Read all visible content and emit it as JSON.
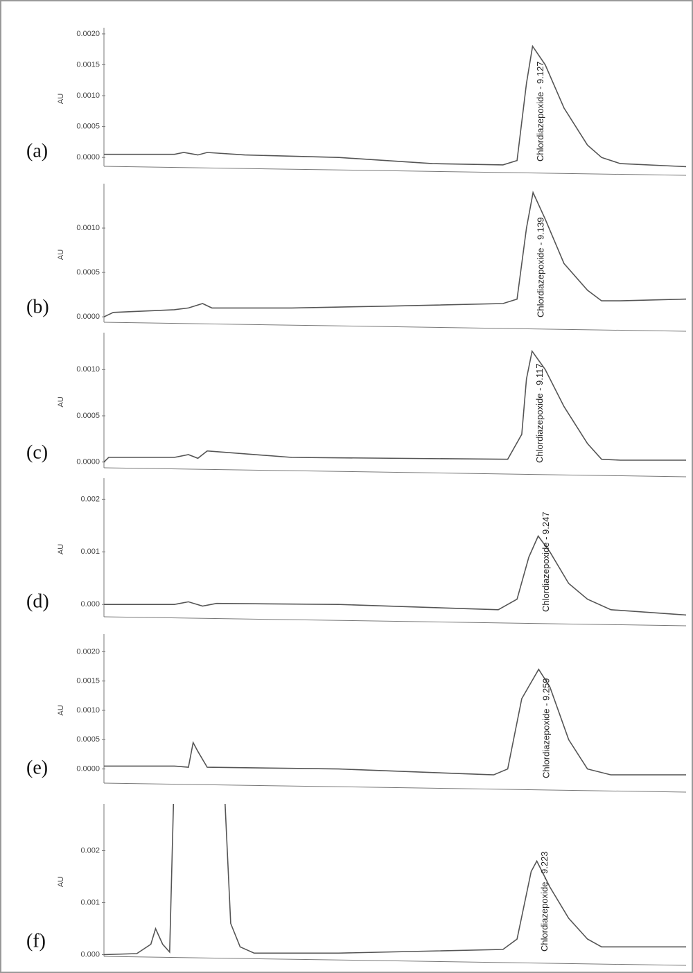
{
  "chart_data": [
    {
      "type": "line",
      "label": "(a)",
      "ylabel": "AU",
      "annotation": "Chlordiazepoxide - 9.127",
      "color": "#555555",
      "xlim": [
        0,
        12.4
      ],
      "ylim": [
        -0.0002,
        0.0021
      ],
      "yticks": [
        {
          "value": 0,
          "label": "0.0000"
        },
        {
          "value": 0.0005,
          "label": "0.0005"
        },
        {
          "value": 0.001,
          "label": "0.0010"
        },
        {
          "value": 0.0015,
          "label": "0.0015"
        },
        {
          "value": 0.002,
          "label": "0.0020"
        }
      ],
      "x": [
        0,
        0.5,
        1.5,
        1.7,
        2,
        2.2,
        3,
        5,
        7,
        8.5,
        8.8,
        9.0,
        9.13,
        9.4,
        9.8,
        10.3,
        10.6,
        11,
        12.4
      ],
      "values": [
        5e-05,
        5e-05,
        5e-05,
        8e-05,
        4e-05,
        8e-05,
        4e-05,
        0.0,
        -0.0001,
        -0.00012,
        -5e-05,
        0.0012,
        0.0018,
        0.0015,
        0.0008,
        0.0002,
        0.0,
        -0.0001,
        -0.00015
      ]
    },
    {
      "type": "line",
      "label": "(b)",
      "ylabel": "AU",
      "annotation": "Chlordiazepoxide - 9.139",
      "color": "#555555",
      "xlim": [
        0,
        12.4
      ],
      "ylim": [
        -0.0001,
        0.0015
      ],
      "yticks": [
        {
          "value": 0,
          "label": "0.0000"
        },
        {
          "value": 0.0005,
          "label": "0.0005"
        },
        {
          "value": 0.001,
          "label": "0.0010"
        }
      ],
      "x": [
        0,
        0.2,
        1.5,
        1.8,
        2.1,
        2.3,
        4,
        6,
        8.5,
        8.8,
        9.0,
        9.14,
        9.4,
        9.8,
        10.3,
        10.6,
        11,
        12.4
      ],
      "values": [
        0,
        5e-05,
        8e-05,
        0.0001,
        0.00015,
        0.0001,
        0.0001,
        0.00012,
        0.00015,
        0.0002,
        0.001,
        0.0014,
        0.0011,
        0.0006,
        0.0003,
        0.00018,
        0.00018,
        0.0002
      ]
    },
    {
      "type": "line",
      "label": "(c)",
      "ylabel": "AU",
      "annotation": "Chlordiazepoxide - 9.117",
      "color": "#555555",
      "xlim": [
        0,
        12.4
      ],
      "ylim": [
        -0.0001,
        0.0014
      ],
      "yticks": [
        {
          "value": 0,
          "label": "0.0000"
        },
        {
          "value": 0.0005,
          "label": "0.0005"
        },
        {
          "value": 0.001,
          "label": "0.0010"
        }
      ],
      "x": [
        0,
        0.1,
        1.5,
        1.8,
        2,
        2.2,
        4,
        8.6,
        8.9,
        9.0,
        9.12,
        9.4,
        9.8,
        10.3,
        10.6,
        11,
        12.4
      ],
      "values": [
        0,
        5e-05,
        5e-05,
        8e-05,
        4e-05,
        0.00012,
        5e-05,
        3e-05,
        0.0003,
        0.0009,
        0.0012,
        0.001,
        0.0006,
        0.0002,
        3e-05,
        2e-05,
        2e-05
      ]
    },
    {
      "type": "line",
      "label": "(d)",
      "ylabel": "AU",
      "annotation": "Chlordiazepoxide - 9.247",
      "color": "#555555",
      "xlim": [
        0,
        12.4
      ],
      "ylim": [
        -0.0003,
        0.0024
      ],
      "yticks": [
        {
          "value": 0,
          "label": "0.000"
        },
        0.001,
        0.002
      ],
      "x": [
        0,
        1.5,
        1.8,
        2.1,
        2.4,
        5,
        8.4,
        8.8,
        9.05,
        9.25,
        9.5,
        9.9,
        10.3,
        10.8,
        12.4
      ],
      "values": [
        0,
        0,
        5e-05,
        -3e-05,
        2e-05,
        0,
        -0.0001,
        0.0001,
        0.0009,
        0.0013,
        0.001,
        0.0004,
        0.0001,
        -0.0001,
        -0.0002
      ]
    },
    {
      "type": "line",
      "label": "(e)",
      "ylabel": "AU",
      "annotation": "Chlordiazepoxide - 9.259",
      "color": "#555555",
      "xlim": [
        0,
        12.4
      ],
      "ylim": [
        -0.0003,
        0.0023
      ],
      "yticks": [
        {
          "value": 0,
          "label": "0.0000"
        },
        {
          "value": 0.0005,
          "label": "0.0005"
        },
        {
          "value": 0.001,
          "label": "0.0010"
        },
        {
          "value": 0.0015,
          "label": "0.0015"
        },
        {
          "value": 0.002,
          "label": "0.0020"
        }
      ],
      "x": [
        0,
        1.5,
        1.8,
        1.9,
        2.0,
        2.2,
        5,
        8.3,
        8.6,
        8.9,
        9.26,
        9.5,
        9.9,
        10.3,
        10.8,
        12.4
      ],
      "values": [
        5e-05,
        5e-05,
        3e-05,
        0.00045,
        0.0003,
        3e-05,
        0,
        -0.0001,
        0,
        0.0012,
        0.0017,
        0.0014,
        0.0005,
        0,
        -0.0001,
        -0.0001
      ]
    },
    {
      "type": "line",
      "label": "(f)",
      "ylabel": "AU",
      "annotation": "Chlordiazepoxide - 9.223",
      "color": "#555555",
      "xlim": [
        0,
        12.4
      ],
      "ylim": [
        -0.0001,
        0.0029
      ],
      "yticks": [
        {
          "value": 0,
          "label": "0.000"
        },
        0.001,
        0.002
      ],
      "x": [
        0,
        0.7,
        1.0,
        1.1,
        1.25,
        1.4,
        1.48,
        2.0,
        2.58,
        2.7,
        2.9,
        3.2,
        5,
        8.5,
        8.8,
        9.1,
        9.22,
        9.5,
        9.9,
        10.3,
        10.6,
        12.4
      ],
      "values": [
        0,
        2e-05,
        0.0002,
        0.0005,
        0.0002,
        5e-05,
        0.0029,
        null,
        0.0029,
        0.0006,
        0.00015,
        3e-05,
        3e-05,
        0.0001,
        0.0003,
        0.0016,
        0.0018,
        0.0013,
        0.0007,
        0.0003,
        0.00015,
        0.00015
      ]
    }
  ]
}
